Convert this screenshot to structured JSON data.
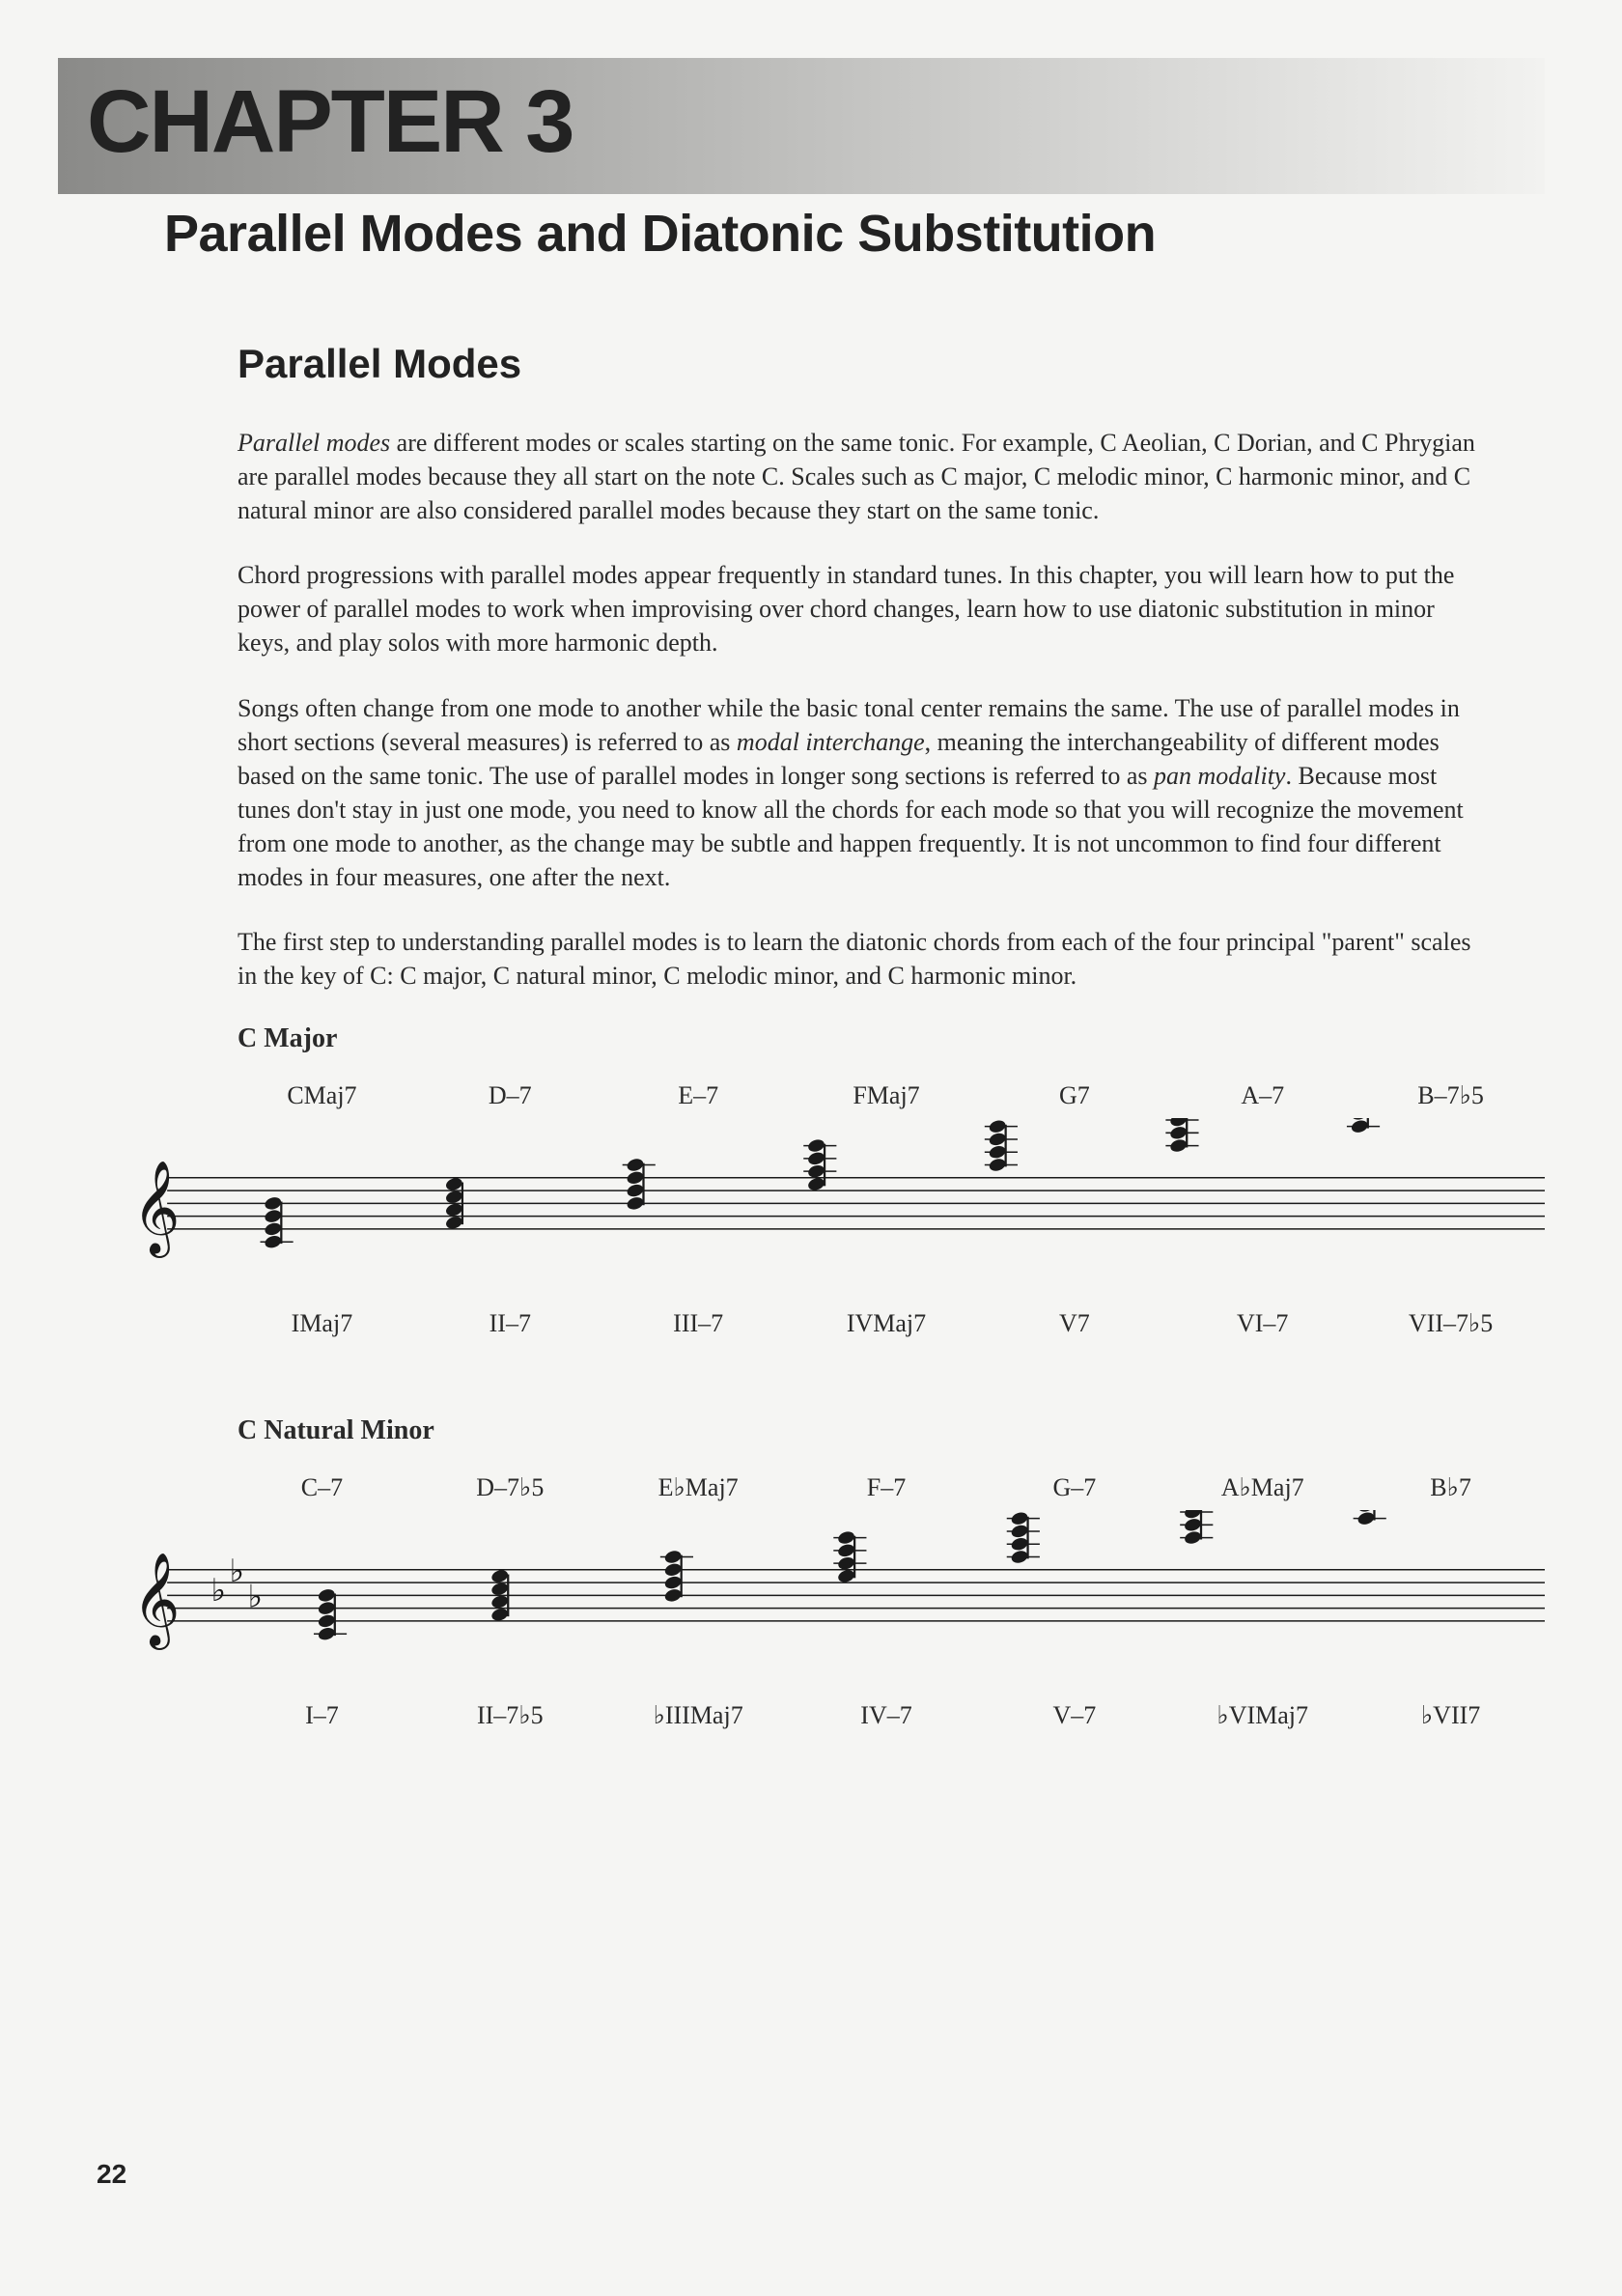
{
  "chapter_label": "CHAPTER 3",
  "subtitle": "Parallel Modes and Diatonic Substitution",
  "section_heading": "Parallel Modes",
  "paragraphs": {
    "p1_a": "Parallel modes",
    "p1_b": " are different modes or scales starting on the same tonic. For example, C Aeolian, C Dorian, and C Phrygian are parallel modes because they all start on the note C. Scales such as C major, C melodic minor, C harmonic minor, and C natural minor are also considered parallel modes because they start on the same tonic.",
    "p2": "Chord progressions with parallel modes appear frequently in standard tunes. In this chapter, you will learn how to put the power of parallel modes to work when improvising over chord changes, learn how to use diatonic substitution in minor keys, and play solos with more harmonic depth.",
    "p3_a": "Songs often change from one mode to another while the basic tonal center remains the same. The use of parallel modes in short sections (several measures) is referred to as ",
    "p3_b": "modal interchange",
    "p3_c": ", meaning the interchangeability of different modes based on the same tonic. The use of parallel modes in longer song sections is referred to as ",
    "p3_d": "pan modality",
    "p3_e": ". Because most tunes don't stay in just one mode, you need to know all the chords for each mode so that you will recognize the movement from one mode to another, as the change may be subtle and happen frequently. It is not uncommon to find four different modes in four measures, one after the next.",
    "p4": "The first step to understanding parallel modes is to learn the diatonic chords from each of the four principal \"parent\" scales in the key of C: C major, C natural minor, C melodic minor, and C harmonic minor."
  },
  "scales": {
    "major": {
      "title": "C Major",
      "key_sig_flats": 0,
      "chords_top": [
        "CMaj7",
        "D–7",
        "E–7",
        "FMaj7",
        "G7",
        "A–7",
        "B–7♭5"
      ],
      "chords_bottom": [
        "IMaj7",
        "II–7",
        "III–7",
        "IVMaj7",
        "V7",
        "VI–7",
        "VII–7♭5"
      ],
      "chord_positions": [
        0,
        3,
        6,
        9,
        12,
        15,
        18
      ]
    },
    "nat_minor": {
      "title": "C Natural Minor",
      "key_sig_flats": 3,
      "chords_top": [
        "C–7",
        "D–7♭5",
        "E♭Maj7",
        "F–7",
        "G–7",
        "A♭Maj7",
        "B♭7"
      ],
      "chords_bottom": [
        "I–7",
        "II–7♭5",
        "♭IIIMaj7",
        "IV–7",
        "V–7",
        "♭VIMaj7",
        "♭VII7"
      ],
      "chord_positions": [
        0,
        3,
        6,
        9,
        12,
        15,
        18
      ]
    }
  },
  "staff_style": {
    "line_color": "#1a1a1a",
    "line_width": 1.6,
    "note_color": "#1a1a1a"
  },
  "page_number": "22"
}
